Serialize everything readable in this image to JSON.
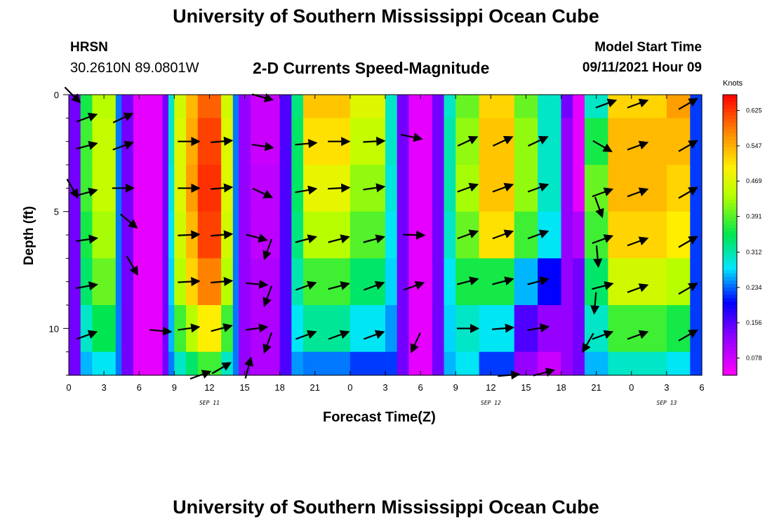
{
  "header": {
    "main_title": "University of Southern Mississippi Ocean Cube",
    "station_name": "HRSN",
    "station_coords": "30.2610N  89.0801W",
    "plot_title": "2-D Currents Speed-Magnitude",
    "model_label": "Model Start Time",
    "model_time": "09/11/2021 Hour 09"
  },
  "footer": {
    "title": "University of Southern Mississippi Ocean Cube"
  },
  "chart_data": {
    "type": "heatmap",
    "title": "2-D Currents Speed-Magnitude",
    "xlabel": "Forecast Time(Z)",
    "ylabel": "Depth (ft)",
    "x_range_hours": [
      0,
      54
    ],
    "y_range_ft": [
      0,
      12
    ],
    "x_tick_labels": [
      "0",
      "3",
      "6",
      "9",
      "12",
      "15",
      "18",
      "21",
      "0",
      "3",
      "6",
      "9",
      "12",
      "15",
      "18",
      "21",
      "0",
      "3",
      "6"
    ],
    "y_tick_labels": [
      {
        "value": 0,
        "label": "0"
      },
      {
        "value": 5,
        "label": "5"
      },
      {
        "value": 10,
        "label": "10"
      }
    ],
    "date_labels": [
      {
        "hour": 12,
        "label": "SEP 11"
      },
      {
        "hour": 36,
        "label": "SEP 12"
      },
      {
        "hour": 51,
        "label": "SEP 13"
      }
    ],
    "colorbar": {
      "unit": "Knots",
      "range": [
        0.04,
        0.66
      ],
      "tick_labels": [
        "0.625",
        "0.547",
        "0.469",
        "0.391",
        "0.312",
        "0.234",
        "0.156",
        "0.078"
      ],
      "tick_values": [
        0.625,
        0.547,
        0.469,
        0.391,
        0.312,
        0.234,
        0.156,
        0.078
      ]
    },
    "depth_levels_ft": [
      0,
      2,
      4,
      6,
      8,
      10,
      12
    ],
    "speed_profile_by_hour": [
      {
        "hours": [
          0,
          1
        ],
        "speeds": [
          0.14,
          0.14,
          0.14,
          0.14,
          0.14,
          0.14,
          0.14
        ]
      },
      {
        "hours": [
          1,
          2
        ],
        "speeds": [
          0.36,
          0.38,
          0.38,
          0.36,
          0.34,
          0.3,
          0.26
        ]
      },
      {
        "hours": [
          2,
          4
        ],
        "speeds": [
          0.44,
          0.45,
          0.45,
          0.43,
          0.4,
          0.35,
          0.28
        ]
      },
      {
        "hours": [
          4,
          4.5
        ],
        "speeds": [
          0.24,
          0.24,
          0.24,
          0.24,
          0.24,
          0.24,
          0.24
        ]
      },
      {
        "hours": [
          4.5,
          5.5
        ],
        "speeds": [
          0.14,
          0.14,
          0.14,
          0.14,
          0.14,
          0.14,
          0.14
        ]
      },
      {
        "hours": [
          5.5,
          8
        ],
        "speeds": [
          0.06,
          0.06,
          0.06,
          0.06,
          0.06,
          0.06,
          0.06
        ]
      },
      {
        "hours": [
          8,
          8.5
        ],
        "speeds": [
          0.14,
          0.14,
          0.14,
          0.14,
          0.14,
          0.14,
          0.14
        ]
      },
      {
        "hours": [
          8.5,
          9
        ],
        "speeds": [
          0.3,
          0.3,
          0.29,
          0.28,
          0.27,
          0.26,
          0.24
        ]
      },
      {
        "hours": [
          9,
          10
        ],
        "speeds": [
          0.46,
          0.47,
          0.47,
          0.46,
          0.44,
          0.38,
          0.3
        ]
      },
      {
        "hours": [
          10,
          11
        ],
        "speeds": [
          0.54,
          0.55,
          0.56,
          0.54,
          0.52,
          0.44,
          0.34
        ]
      },
      {
        "hours": [
          11,
          13
        ],
        "speeds": [
          0.6,
          0.62,
          0.63,
          0.62,
          0.58,
          0.5,
          0.38
        ]
      },
      {
        "hours": [
          13,
          14
        ],
        "speeds": [
          0.46,
          0.47,
          0.47,
          0.46,
          0.44,
          0.38,
          0.3
        ]
      },
      {
        "hours": [
          14,
          14.5
        ],
        "speeds": [
          0.24,
          0.24,
          0.24,
          0.24,
          0.24,
          0.24,
          0.24
        ]
      },
      {
        "hours": [
          14.5,
          15.5
        ],
        "speeds": [
          0.12,
          0.12,
          0.12,
          0.12,
          0.12,
          0.12,
          0.12
        ]
      },
      {
        "hours": [
          15.5,
          18
        ],
        "speeds": [
          0.08,
          0.08,
          0.09,
          0.09,
          0.1,
          0.1,
          0.1
        ]
      },
      {
        "hours": [
          18,
          19
        ],
        "speeds": [
          0.16,
          0.16,
          0.16,
          0.16,
          0.16,
          0.16,
          0.16
        ]
      },
      {
        "hours": [
          19,
          20
        ],
        "speeds": [
          0.33,
          0.34,
          0.34,
          0.33,
          0.31,
          0.28,
          0.25
        ]
      },
      {
        "hours": [
          20,
          24
        ],
        "speeds": [
          0.53,
          0.51,
          0.48,
          0.44,
          0.38,
          0.32,
          0.24
        ]
      },
      {
        "hours": [
          24,
          27
        ],
        "speeds": [
          0.47,
          0.45,
          0.42,
          0.39,
          0.34,
          0.28,
          0.22
        ]
      },
      {
        "hours": [
          27,
          28
        ],
        "speeds": [
          0.3,
          0.3,
          0.29,
          0.28,
          0.27,
          0.25,
          0.22
        ]
      },
      {
        "hours": [
          28,
          29
        ],
        "speeds": [
          0.14,
          0.14,
          0.14,
          0.14,
          0.14,
          0.14,
          0.14
        ]
      },
      {
        "hours": [
          29,
          31
        ],
        "speeds": [
          0.06,
          0.06,
          0.06,
          0.06,
          0.06,
          0.06,
          0.06
        ]
      },
      {
        "hours": [
          31,
          32
        ],
        "speeds": [
          0.14,
          0.14,
          0.14,
          0.14,
          0.14,
          0.14,
          0.14
        ]
      },
      {
        "hours": [
          32,
          33
        ],
        "speeds": [
          0.3,
          0.31,
          0.31,
          0.3,
          0.28,
          0.27,
          0.26
        ]
      },
      {
        "hours": [
          33,
          35
        ],
        "speeds": [
          0.4,
          0.42,
          0.43,
          0.4,
          0.36,
          0.3,
          0.28
        ]
      },
      {
        "hours": [
          35,
          38
        ],
        "speeds": [
          0.52,
          0.53,
          0.53,
          0.51,
          0.36,
          0.28,
          0.22
        ]
      },
      {
        "hours": [
          38,
          40
        ],
        "speeds": [
          0.4,
          0.42,
          0.42,
          0.38,
          0.26,
          0.16,
          0.12
        ]
      },
      {
        "hours": [
          40,
          42
        ],
        "speeds": [
          0.3,
          0.3,
          0.3,
          0.28,
          0.2,
          0.12,
          0.08
        ]
      },
      {
        "hours": [
          42,
          43
        ],
        "speeds": [
          0.14,
          0.12,
          0.12,
          0.12,
          0.12,
          0.12,
          0.12
        ]
      },
      {
        "hours": [
          43,
          44
        ],
        "speeds": [
          0.06,
          0.06,
          0.06,
          0.1,
          0.14,
          0.14,
          0.14
        ]
      },
      {
        "hours": [
          44,
          46
        ],
        "speeds": [
          0.3,
          0.36,
          0.4,
          0.38,
          0.34,
          0.3,
          0.26
        ]
      },
      {
        "hours": [
          46,
          51
        ],
        "speeds": [
          0.52,
          0.54,
          0.54,
          0.52,
          0.46,
          0.38,
          0.3
        ]
      },
      {
        "hours": [
          51,
          53
        ],
        "speeds": [
          0.56,
          0.54,
          0.52,
          0.5,
          0.44,
          0.36,
          0.28
        ]
      },
      {
        "hours": [
          53,
          54
        ],
        "speeds": [
          0.22,
          0.22,
          0.22,
          0.22,
          0.22,
          0.22,
          0.22
        ]
      }
    ],
    "current_vectors": [
      {
        "hour": 0.3,
        "depth": 0,
        "angle_deg": 45
      },
      {
        "hour": 1.5,
        "depth": 1,
        "angle_deg": -20
      },
      {
        "hour": 0.3,
        "depth": 4,
        "angle_deg": 60
      },
      {
        "hour": 1.5,
        "depth": 2.2,
        "angle_deg": -15
      },
      {
        "hour": 1.5,
        "depth": 4.2,
        "angle_deg": -15
      },
      {
        "hour": 1.5,
        "depth": 6.2,
        "angle_deg": -8
      },
      {
        "hour": 1.5,
        "depth": 8.2,
        "angle_deg": -10
      },
      {
        "hour": 1.5,
        "depth": 10.3,
        "angle_deg": -20
      },
      {
        "hour": 4.6,
        "depth": 1,
        "angle_deg": -25
      },
      {
        "hour": 4.6,
        "depth": 2.2,
        "angle_deg": -20
      },
      {
        "hour": 4.6,
        "depth": 4,
        "angle_deg": 0
      },
      {
        "hour": 5.1,
        "depth": 5.4,
        "angle_deg": 40
      },
      {
        "hour": 5.4,
        "depth": 7.3,
        "angle_deg": 60
      },
      {
        "hour": 7.8,
        "depth": 10.1,
        "angle_deg": 5
      },
      {
        "hour": 10.2,
        "depth": 2,
        "angle_deg": 0
      },
      {
        "hour": 10.2,
        "depth": 4,
        "angle_deg": 0
      },
      {
        "hour": 10.2,
        "depth": 6,
        "angle_deg": -3
      },
      {
        "hour": 10.2,
        "depth": 8,
        "angle_deg": -3
      },
      {
        "hour": 10.2,
        "depth": 10,
        "angle_deg": -8
      },
      {
        "hour": 11.2,
        "depth": 12,
        "angle_deg": -20
      },
      {
        "hour": 13.0,
        "depth": 2,
        "angle_deg": -5
      },
      {
        "hour": 13.0,
        "depth": 4,
        "angle_deg": -5
      },
      {
        "hour": 13.0,
        "depth": 6,
        "angle_deg": -5
      },
      {
        "hour": 13.0,
        "depth": 8,
        "angle_deg": -5
      },
      {
        "hour": 13.0,
        "depth": 10,
        "angle_deg": -15
      },
      {
        "hour": 13.0,
        "depth": 11.7,
        "angle_deg": -30
      },
      {
        "hour": 16.5,
        "depth": 0.1,
        "angle_deg": 15
      },
      {
        "hour": 16.5,
        "depth": 2.2,
        "angle_deg": 8
      },
      {
        "hour": 16.5,
        "depth": 4.2,
        "angle_deg": 25
      },
      {
        "hour": 17.0,
        "depth": 6.6,
        "angle_deg": 110
      },
      {
        "hour": 17.0,
        "depth": 8.6,
        "angle_deg": 110
      },
      {
        "hour": 17.0,
        "depth": 10.6,
        "angle_deg": 110
      },
      {
        "hour": 15.3,
        "depth": 11.7,
        "angle_deg": -75
      },
      {
        "hour": 16.0,
        "depth": 10,
        "angle_deg": -8
      },
      {
        "hour": 16.0,
        "depth": 8.1,
        "angle_deg": 5
      },
      {
        "hour": 16.0,
        "depth": 6.1,
        "angle_deg": 15
      },
      {
        "hour": 20.2,
        "depth": 2.1,
        "angle_deg": -5
      },
      {
        "hour": 20.2,
        "depth": 4.1,
        "angle_deg": -10
      },
      {
        "hour": 20.2,
        "depth": 6.2,
        "angle_deg": -15
      },
      {
        "hour": 20.2,
        "depth": 8.2,
        "angle_deg": -20
      },
      {
        "hour": 20.2,
        "depth": 10.3,
        "angle_deg": -20
      },
      {
        "hour": 23.0,
        "depth": 2.0,
        "angle_deg": 0
      },
      {
        "hour": 23.0,
        "depth": 4.0,
        "angle_deg": -3
      },
      {
        "hour": 23.0,
        "depth": 6.2,
        "angle_deg": -15
      },
      {
        "hour": 23.0,
        "depth": 8.2,
        "angle_deg": -15
      },
      {
        "hour": 23.0,
        "depth": 10.3,
        "angle_deg": -20
      },
      {
        "hour": 26.0,
        "depth": 2.0,
        "angle_deg": -3
      },
      {
        "hour": 26.0,
        "depth": 4.0,
        "angle_deg": -8
      },
      {
        "hour": 26.0,
        "depth": 6.2,
        "angle_deg": -15
      },
      {
        "hour": 26.0,
        "depth": 8.2,
        "angle_deg": -20
      },
      {
        "hour": 26.0,
        "depth": 10.3,
        "angle_deg": -20
      },
      {
        "hour": 29.2,
        "depth": 1.8,
        "angle_deg": 12
      },
      {
        "hour": 29.4,
        "depth": 6.0,
        "angle_deg": 2
      },
      {
        "hour": 29.4,
        "depth": 8.2,
        "angle_deg": -20
      },
      {
        "hour": 29.6,
        "depth": 10.6,
        "angle_deg": 115
      },
      {
        "hour": 34.0,
        "depth": 2.0,
        "angle_deg": -25
      },
      {
        "hour": 34.0,
        "depth": 4.0,
        "angle_deg": -20
      },
      {
        "hour": 34.0,
        "depth": 6.0,
        "angle_deg": -20
      },
      {
        "hour": 34.0,
        "depth": 8.0,
        "angle_deg": -15
      },
      {
        "hour": 34.0,
        "depth": 10.0,
        "angle_deg": 0
      },
      {
        "hour": 37.0,
        "depth": 2.0,
        "angle_deg": -25
      },
      {
        "hour": 37.0,
        "depth": 4.0,
        "angle_deg": -20
      },
      {
        "hour": 37.0,
        "depth": 6.0,
        "angle_deg": -20
      },
      {
        "hour": 37.0,
        "depth": 8.0,
        "angle_deg": -15
      },
      {
        "hour": 37.0,
        "depth": 10.0,
        "angle_deg": -5
      },
      {
        "hour": 37.5,
        "depth": 12.0,
        "angle_deg": -5
      },
      {
        "hour": 40.0,
        "depth": 2.0,
        "angle_deg": -25
      },
      {
        "hour": 40.0,
        "depth": 4.0,
        "angle_deg": -20
      },
      {
        "hour": 40.0,
        "depth": 6.0,
        "angle_deg": -20
      },
      {
        "hour": 40.0,
        "depth": 8.0,
        "angle_deg": -15
      },
      {
        "hour": 40.0,
        "depth": 10.0,
        "angle_deg": -10
      },
      {
        "hour": 40.5,
        "depth": 11.9,
        "angle_deg": -15
      },
      {
        "hour": 45.5,
        "depth": 2.2,
        "angle_deg": 30
      },
      {
        "hour": 45.5,
        "depth": 4.2,
        "angle_deg": -20
      },
      {
        "hour": 45.5,
        "depth": 6.2,
        "angle_deg": -20
      },
      {
        "hour": 45.5,
        "depth": 8.2,
        "angle_deg": -15
      },
      {
        "hour": 45.5,
        "depth": 10.3,
        "angle_deg": -20
      },
      {
        "hour": 45.8,
        "depth": 0.4,
        "angle_deg": -20
      },
      {
        "hour": 45.2,
        "depth": 4.8,
        "angle_deg": 70
      },
      {
        "hour": 45.1,
        "depth": 6.9,
        "angle_deg": 85
      },
      {
        "hour": 44.9,
        "depth": 8.9,
        "angle_deg": 95
      },
      {
        "hour": 44.3,
        "depth": 10.6,
        "angle_deg": 120
      },
      {
        "hour": 48.5,
        "depth": 0.4,
        "angle_deg": -20
      },
      {
        "hour": 48.5,
        "depth": 2.2,
        "angle_deg": -20
      },
      {
        "hour": 48.5,
        "depth": 4.2,
        "angle_deg": -20
      },
      {
        "hour": 48.5,
        "depth": 6.3,
        "angle_deg": -20
      },
      {
        "hour": 48.5,
        "depth": 8.3,
        "angle_deg": -20
      },
      {
        "hour": 48.5,
        "depth": 10.3,
        "angle_deg": -20
      },
      {
        "hour": 52.8,
        "depth": 0.4,
        "angle_deg": -30
      },
      {
        "hour": 52.8,
        "depth": 2.2,
        "angle_deg": -30
      },
      {
        "hour": 52.8,
        "depth": 4.2,
        "angle_deg": -30
      },
      {
        "hour": 52.8,
        "depth": 6.3,
        "angle_deg": -30
      },
      {
        "hour": 52.8,
        "depth": 8.3,
        "angle_deg": -30
      },
      {
        "hour": 52.8,
        "depth": 10.3,
        "angle_deg": -30
      }
    ]
  }
}
